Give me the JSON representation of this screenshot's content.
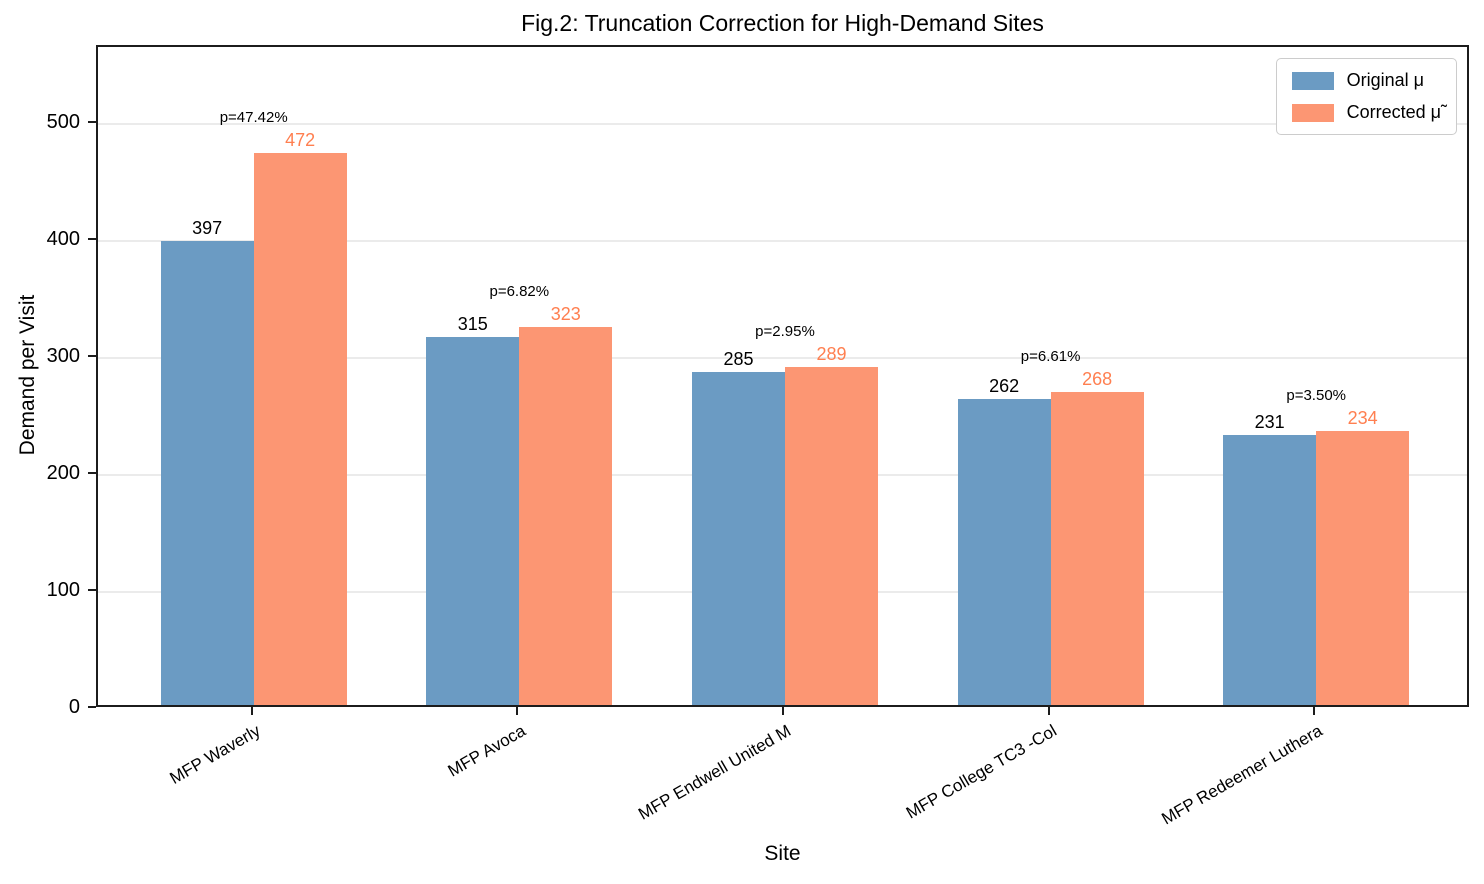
{
  "chart_data": {
    "type": "bar",
    "title": "Fig.2: Truncation Correction for High-Demand Sites",
    "xlabel": "Site",
    "ylabel": "Demand per Visit",
    "ylim": [
      0,
      566
    ],
    "yticks": [
      0,
      100,
      200,
      300,
      400,
      500
    ],
    "grid": true,
    "legend_position": "upper right",
    "categories": [
      "MFP Waverly",
      "MFP Avoca",
      "MFP Endwell United M",
      "MFP College TC3 -Col",
      "MFP Redeemer Luthera"
    ],
    "series": [
      {
        "name": "Original μ",
        "color": "#6B9BC3",
        "label_color": "#000000",
        "values": [
          397,
          315,
          285,
          262,
          231
        ]
      },
      {
        "name": "Corrected μ̃",
        "color": "#FC9673",
        "label_color": "#FF7F50",
        "values": [
          472,
          323,
          289,
          268,
          234
        ]
      }
    ],
    "bar_annotations": [
      "p=47.42%",
      "p=6.82%",
      "p=2.95%",
      "p=6.61%",
      "p=3.50%"
    ]
  }
}
